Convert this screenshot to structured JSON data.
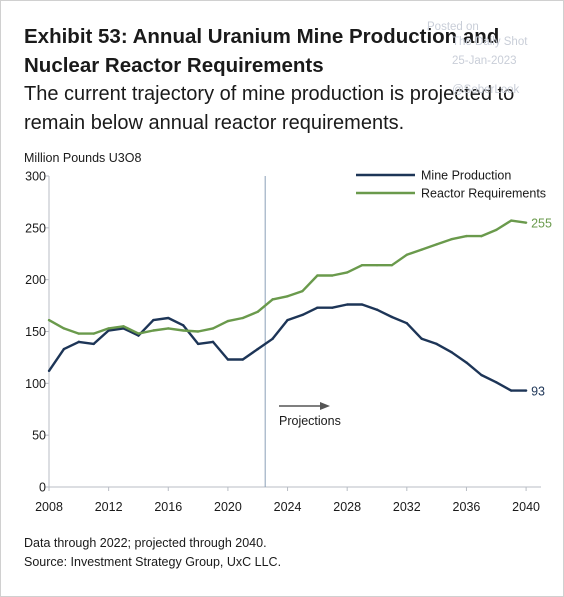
{
  "header": {
    "title": "Exhibit 53: Annual Uranium Mine Production and Nuclear Reactor Requirements",
    "subtitle": "The current trajectory of mine production is projected to remain below annual reactor requirements."
  },
  "watermark": {
    "line1": "Posted on",
    "line2": "The Daily Shot",
    "line3": "25-Jan-2023",
    "line4": "@SoberLook"
  },
  "footer": {
    "note": "Data through 2022; projected through 2040.",
    "source": "Source: Investment Strategy Group, UxC LLC."
  },
  "colors": {
    "mine": "#1d3557",
    "reactor": "#6a9a4c",
    "axis": "#b8bcc4",
    "divider": "#8aa0b8",
    "arrow": "#555555"
  },
  "chart_data": {
    "type": "line",
    "ylabel": "Million Pounds U3O8",
    "ylim": [
      0,
      300
    ],
    "xlim": [
      2008,
      2041
    ],
    "yticks": [
      0,
      50,
      100,
      150,
      200,
      250,
      300
    ],
    "xticks": [
      2008,
      2012,
      2016,
      2020,
      2024,
      2028,
      2032,
      2036,
      2040
    ],
    "projection_start": 2022.5,
    "projection_label": "Projections",
    "legend_position": "top-right",
    "series": [
      {
        "name": "Mine Production",
        "color": "#1d3557",
        "end_label": "93",
        "x": [
          2008,
          2009,
          2010,
          2011,
          2012,
          2013,
          2014,
          2015,
          2016,
          2017,
          2018,
          2019,
          2020,
          2021,
          2022,
          2023,
          2024,
          2025,
          2026,
          2027,
          2028,
          2029,
          2030,
          2031,
          2032,
          2033,
          2034,
          2035,
          2036,
          2037,
          2038,
          2039,
          2040
        ],
        "y": [
          112,
          133,
          140,
          138,
          151,
          153,
          146,
          161,
          163,
          156,
          138,
          140,
          123,
          123,
          133,
          143,
          161,
          166,
          173,
          173,
          176,
          176,
          171,
          164,
          158,
          143,
          138,
          130,
          120,
          108,
          101,
          93,
          93
        ]
      },
      {
        "name": "Reactor Requirements",
        "color": "#6a9a4c",
        "end_label": "255",
        "x": [
          2008,
          2009,
          2010,
          2011,
          2012,
          2013,
          2014,
          2015,
          2016,
          2017,
          2018,
          2019,
          2020,
          2021,
          2022,
          2023,
          2024,
          2025,
          2026,
          2027,
          2028,
          2029,
          2030,
          2031,
          2032,
          2033,
          2034,
          2035,
          2036,
          2037,
          2038,
          2039,
          2040
        ],
        "y": [
          161,
          153,
          148,
          148,
          153,
          155,
          148,
          151,
          153,
          151,
          150,
          153,
          160,
          163,
          169,
          181,
          184,
          189,
          204,
          204,
          207,
          214,
          214,
          214,
          224,
          229,
          234,
          239,
          242,
          242,
          248,
          257,
          255
        ]
      }
    ]
  }
}
